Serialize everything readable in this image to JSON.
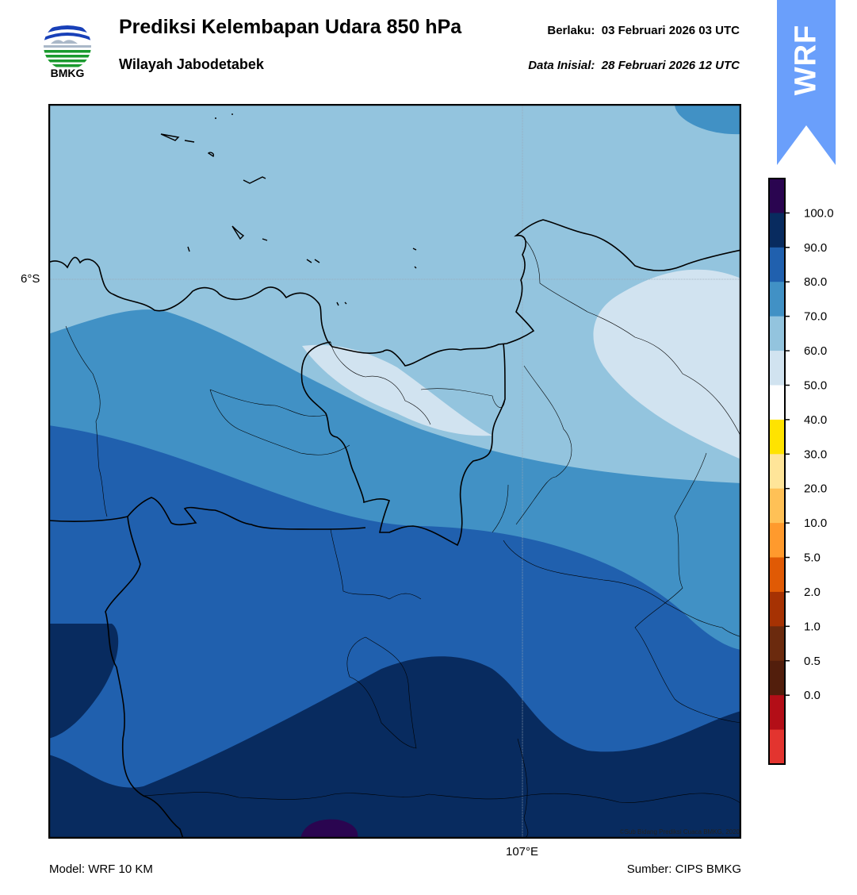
{
  "header": {
    "title": "Prediksi Kelembapan Udara 850 hPa",
    "region": "Wilayah Jabodetabek",
    "valid_label": "Berlaku:",
    "valid_time": "03 Februari 2026 03 UTC",
    "init_label": "Data Inisial:",
    "init_time": "28 Februari 2026 12 UTC"
  },
  "logo": {
    "text": "BMKG",
    "icon": "bmkg-logo-icon"
  },
  "badge": {
    "text": "WRF",
    "color": "#6a9ffb",
    "icon": "arrow-up-icon"
  },
  "map": {
    "lat_label": "6°S",
    "lon_label": "107°E",
    "credit": "©Sub Bidang Prediksi Cuaca BMKG, 2020"
  },
  "colorbar": {
    "labels": [
      "100.0",
      "90.0",
      "80.0",
      "70.0",
      "60.0",
      "50.0",
      "40.0",
      "30.0",
      "20.0",
      "10.0",
      "5.0",
      "2.0",
      "1.0",
      "0.5",
      "0.0"
    ],
    "colors_top_to_bottom": [
      "#2a0550",
      "#082b5f",
      "#2060ae",
      "#4191c5",
      "#93c4de",
      "#d1e3f0",
      "#ffffff",
      "#ffe300",
      "#ffe599",
      "#ffc156",
      "#ff9a2d",
      "#e05a05",
      "#a63203",
      "#6b2a0e",
      "#521e0c",
      "#b30e17",
      "#e3342f"
    ]
  },
  "footer": {
    "model": "Model: WRF 10 KM",
    "source": "Sumber: CIPS BMKG"
  }
}
